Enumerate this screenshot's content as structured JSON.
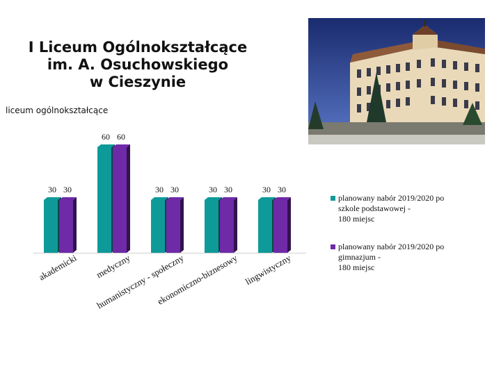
{
  "header": {
    "title_lines": [
      "I Liceum Ogólnokształcące",
      "im. A. Osuchowskiego",
      "w Cieszynie"
    ],
    "subtitle": "liceum ogólnokształcące"
  },
  "legend": {
    "entries": [
      {
        "lines": [
          "planowany nabór 2019/2020 po",
          "szkole podstawowej -",
          "180 miejsc"
        ]
      },
      {
        "lines": [
          "planowany nabór 2019/2020 po",
          "gimnazjum -",
          "180 miejsc"
        ]
      }
    ]
  },
  "chart_data": {
    "type": "bar",
    "categories": [
      "akademicki",
      "medyczny",
      "humanistyczny - społeczny",
      "ekonomiczno-biznesowy",
      "lingwistyczny"
    ],
    "series": [
      {
        "name": "planowany nabór 2019/2020 po szkole podstawowej - 180 miejsc",
        "values": [
          30,
          60,
          30,
          30,
          30
        ],
        "color": "#0f9a9a"
      },
      {
        "name": "planowany nabór 2019/2020 po gimnazjum - 180 miejsc",
        "values": [
          30,
          60,
          30,
          30,
          30
        ],
        "color": "#6f2aa8"
      }
    ],
    "data_labels": true,
    "three_d": true,
    "legend_position": "right",
    "grid": false,
    "ylim": [
      0,
      60
    ]
  },
  "colors": {
    "series1": "#0f9a9a",
    "series2": "#6f2aa8"
  }
}
